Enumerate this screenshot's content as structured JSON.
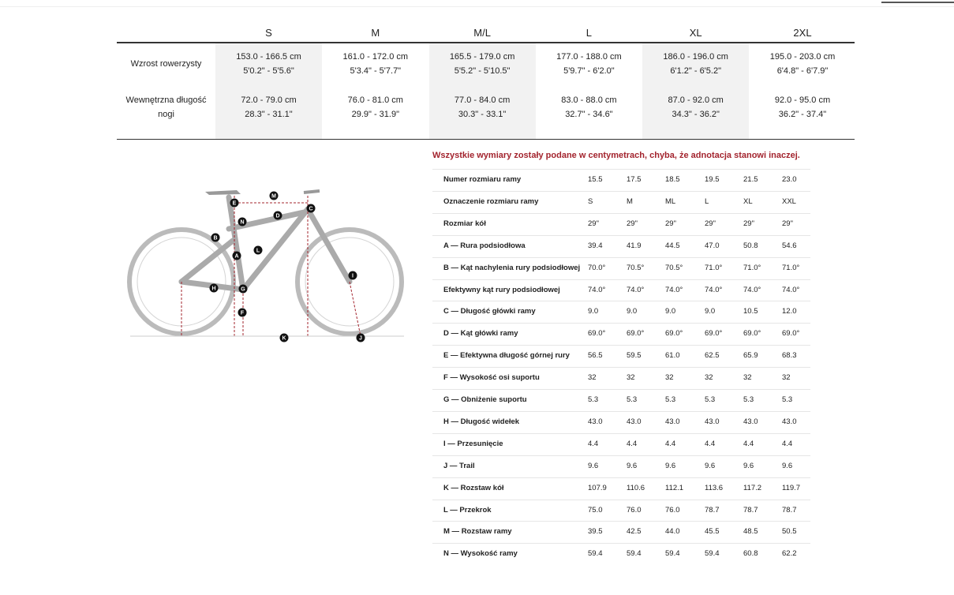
{
  "size_table": {
    "headers": [
      "S",
      "M",
      "M/L",
      "L",
      "XL",
      "2XL"
    ],
    "rows": [
      {
        "label": "Wzrost rowerzysty",
        "cells": [
          [
            "153.0 - 166.5 cm",
            "5'0.2\" - 5'5.6\""
          ],
          [
            "161.0 - 172.0 cm",
            "5'3.4\" - 5'7.7\""
          ],
          [
            "165.5 - 179.0 cm",
            "5'5.2\" - 5'10.5\""
          ],
          [
            "177.0 - 188.0 cm",
            "5'9.7\" - 6'2.0\""
          ],
          [
            "186.0 - 196.0 cm",
            "6'1.2\" - 6'5.2\""
          ],
          [
            "195.0 - 203.0 cm",
            "6'4.8\" - 6'7.9\""
          ]
        ]
      },
      {
        "label": "Wewnętrzna długość nogi",
        "cells": [
          [
            "72.0 - 79.0 cm",
            "28.3\" - 31.1\""
          ],
          [
            "76.0 - 81.0 cm",
            "29.9\" - 31.9\""
          ],
          [
            "77.0 - 84.0 cm",
            "30.3\" - 33.1\""
          ],
          [
            "83.0 - 88.0 cm",
            "32.7\" - 34.6\""
          ],
          [
            "87.0 - 92.0 cm",
            "34.3\" - 36.2\""
          ],
          [
            "92.0 - 95.0 cm",
            "36.2\" - 37.4\""
          ]
        ]
      }
    ]
  },
  "diagram_labels": [
    "M",
    "E",
    "C",
    "N",
    "D",
    "B",
    "L",
    "A",
    "I",
    "H",
    "G",
    "F",
    "K",
    "J"
  ],
  "geometry": {
    "note": "Wszystkie wymiary zostały podane w centymetrach, chyba, że adnotacja stanowi inaczej.",
    "rows": [
      [
        "Numer rozmiaru ramy",
        "15.5",
        "17.5",
        "18.5",
        "19.5",
        "21.5",
        "23.0"
      ],
      [
        "Oznaczenie rozmiaru ramy",
        "S",
        "M",
        "ML",
        "L",
        "XL",
        "XXL"
      ],
      [
        "Rozmiar kół",
        "29\"",
        "29\"",
        "29\"",
        "29\"",
        "29\"",
        "29\""
      ],
      [
        "A — Rura podsiodłowa",
        "39.4",
        "41.9",
        "44.5",
        "47.0",
        "50.8",
        "54.6"
      ],
      [
        "B — Kąt nachylenia rury podsiodłowej",
        "70.0°",
        "70.5°",
        "70.5°",
        "71.0°",
        "71.0°",
        "71.0°"
      ],
      [
        "Efektywny kąt rury podsiodłowej",
        "74.0°",
        "74.0°",
        "74.0°",
        "74.0°",
        "74.0°",
        "74.0°"
      ],
      [
        "C — Długość główki ramy",
        "9.0",
        "9.0",
        "9.0",
        "9.0",
        "10.5",
        "12.0"
      ],
      [
        "D — Kąt główki ramy",
        "69.0°",
        "69.0°",
        "69.0°",
        "69.0°",
        "69.0°",
        "69.0°"
      ],
      [
        "E — Efektywna długość górnej rury",
        "56.5",
        "59.5",
        "61.0",
        "62.5",
        "65.9",
        "68.3"
      ],
      [
        "F — Wysokość osi suportu",
        "32",
        "32",
        "32",
        "32",
        "32",
        "32"
      ],
      [
        "G — Obniżenie suportu",
        "5.3",
        "5.3",
        "5.3",
        "5.3",
        "5.3",
        "5.3"
      ],
      [
        "H — Długość widełek",
        "43.0",
        "43.0",
        "43.0",
        "43.0",
        "43.0",
        "43.0"
      ],
      [
        "I — Przesunięcie",
        "4.4",
        "4.4",
        "4.4",
        "4.4",
        "4.4",
        "4.4"
      ],
      [
        "J — Trail",
        "9.6",
        "9.6",
        "9.6",
        "9.6",
        "9.6",
        "9.6"
      ],
      [
        "K — Rozstaw kół",
        "107.9",
        "110.6",
        "112.1",
        "113.6",
        "117.2",
        "119.7"
      ],
      [
        "L — Przekrok",
        "75.0",
        "76.0",
        "76.0",
        "78.7",
        "78.7",
        "78.7"
      ],
      [
        "M — Rozstaw ramy",
        "39.5",
        "42.5",
        "44.0",
        "45.5",
        "48.5",
        "50.5"
      ],
      [
        "N — Wysokość ramy",
        "59.4",
        "59.4",
        "59.4",
        "59.4",
        "60.8",
        "62.2"
      ]
    ]
  }
}
